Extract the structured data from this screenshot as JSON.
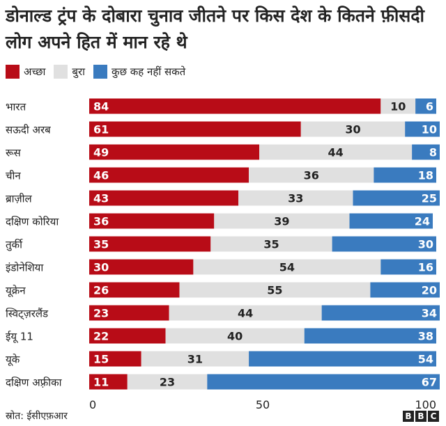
{
  "title": "डोनाल्ड ट्रंप के दोबारा चुनाव जीतने पर किस देश के कितने फ़ीसदी लोग अपने हित में मान रहे थे",
  "source": "स्रोत: ईसीएफ़आर",
  "logo_text": "BBC",
  "colors": {
    "good": "#b80c17",
    "bad": "#e0e0e0",
    "unsure": "#3a7bbf"
  },
  "chart_data": {
    "type": "bar",
    "orientation": "horizontal",
    "stacked": true,
    "title": "डोनाल्ड ट्रंप के दोबारा चुनाव जीतने पर किस देश के कितने फ़ीसदी लोग अपने हित में मान रहे थे",
    "categories": [
      "भारत",
      "सऊदी अरब",
      "रूस",
      "चीन",
      "ब्राज़ील",
      "दक्षिण कोरिया",
      "तुर्की",
      "इंडोनेशिया",
      "यूक्रेन",
      "स्विट्ज़रलैंड",
      "ईयू 11",
      "यूके",
      "दक्षिण अफ़्रीका"
    ],
    "series": [
      {
        "name": "अच्छा",
        "color": "#b80c17",
        "values": [
          84,
          61,
          49,
          46,
          43,
          36,
          35,
          30,
          26,
          23,
          22,
          15,
          11
        ]
      },
      {
        "name": "बुरा",
        "color": "#e0e0e0",
        "values": [
          10,
          30,
          44,
          36,
          33,
          39,
          35,
          54,
          55,
          44,
          40,
          31,
          23
        ]
      },
      {
        "name": "कुछ कह नहीं सकते",
        "color": "#3a7bbf",
        "values": [
          6,
          10,
          8,
          18,
          25,
          24,
          30,
          16,
          20,
          34,
          38,
          54,
          67
        ]
      }
    ],
    "xlim": [
      0,
      100
    ],
    "xticks": [
      0,
      50,
      100
    ],
    "legend_position": "top-left",
    "grid": false
  }
}
